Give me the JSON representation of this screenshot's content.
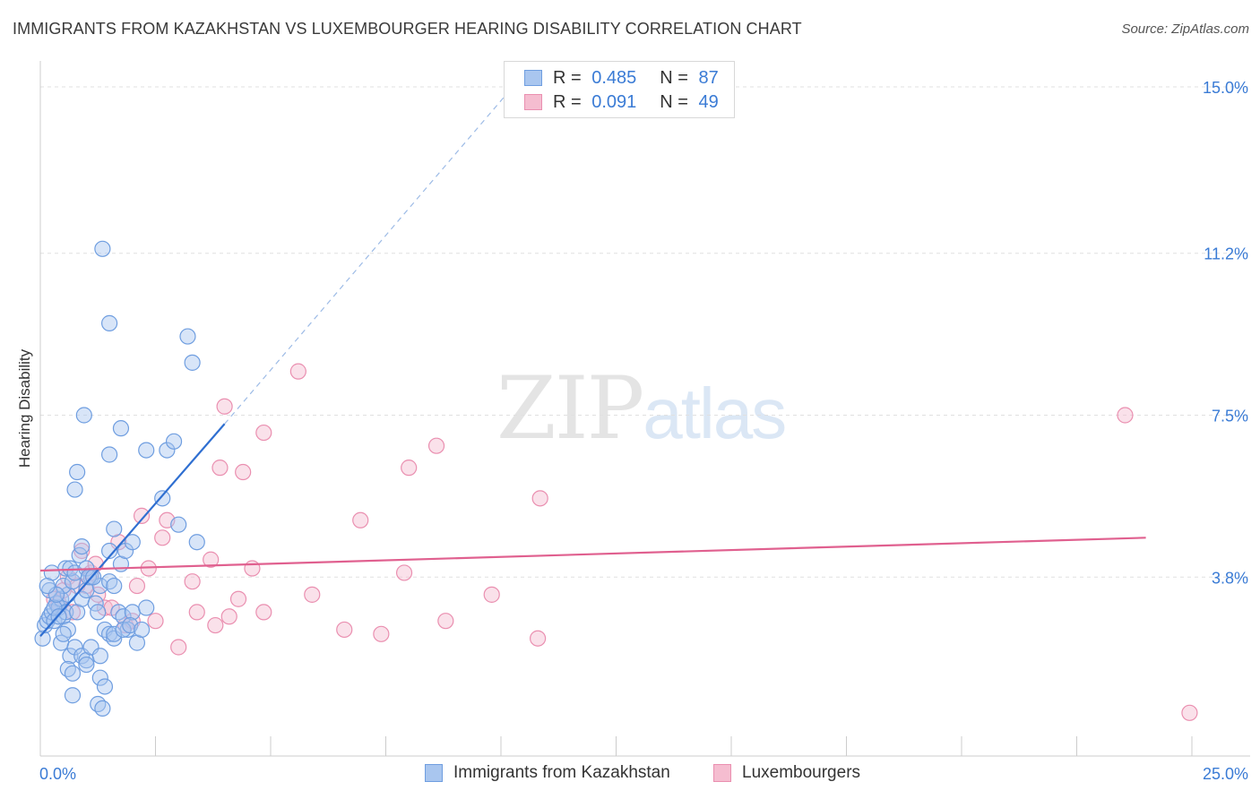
{
  "title": "IMMIGRANTS FROM KAZAKHSTAN VS LUXEMBOURGER HEARING DISABILITY CORRELATION CHART",
  "source": "Source: ZipAtlas.com",
  "watermark": {
    "part1": "ZIP",
    "part2": "atlas"
  },
  "colors": {
    "blue_fill": "#a9c6ef",
    "blue_stroke": "#6f9ee0",
    "blue_line": "#2f6fd1",
    "pink_fill": "#f5bdd0",
    "pink_stroke": "#ea8fb0",
    "pink_line": "#e0608f",
    "value_text": "#3a7bd5",
    "grid": "#e0e0e0"
  },
  "legend_top": [
    {
      "r_label": "R = ",
      "r_value": "0.485",
      "n_label": "N = ",
      "n_value": "87"
    },
    {
      "r_label": "R = ",
      "r_value": "0.091",
      "n_label": "N = ",
      "n_value": "49"
    }
  ],
  "chart_data": {
    "type": "scatter",
    "title": "IMMIGRANTS FROM KAZAKHSTAN VS LUXEMBOURGER HEARING DISABILITY CORRELATION CHART",
    "xlabel": "",
    "ylabel": "Hearing Disability",
    "xlim": [
      0,
      25
    ],
    "ylim": [
      0,
      15.5
    ],
    "x_tick_labels": [
      "0.0%",
      "25.0%"
    ],
    "y_ticks": [
      3.8,
      7.5,
      11.2,
      15.0
    ],
    "y_tick_labels": [
      "3.8%",
      "7.5%",
      "11.2%",
      "15.0%"
    ],
    "series": [
      {
        "name": "Immigrants from Kazakhstan",
        "R": 0.485,
        "N": 87,
        "trend": {
          "x": [
            0,
            4.0
          ],
          "y": [
            2.45,
            7.3
          ],
          "extend_x": [
            4.0,
            10.5
          ],
          "extend_y": [
            7.3,
            15.3
          ]
        },
        "points": [
          [
            0.05,
            2.4
          ],
          [
            0.1,
            2.7
          ],
          [
            0.15,
            2.8
          ],
          [
            0.2,
            2.9
          ],
          [
            0.25,
            3.0
          ],
          [
            0.3,
            2.8
          ],
          [
            0.35,
            3.2
          ],
          [
            0.4,
            3.1
          ],
          [
            0.45,
            3.3
          ],
          [
            0.5,
            2.9
          ],
          [
            0.55,
            3.0
          ],
          [
            0.6,
            3.4
          ],
          [
            0.2,
            3.5
          ],
          [
            0.3,
            3.1
          ],
          [
            0.4,
            2.9
          ],
          [
            0.5,
            3.6
          ],
          [
            0.6,
            2.6
          ],
          [
            0.7,
            3.7
          ],
          [
            0.8,
            3.0
          ],
          [
            0.9,
            3.3
          ],
          [
            1.0,
            3.5
          ],
          [
            1.1,
            3.8
          ],
          [
            1.2,
            3.2
          ],
          [
            1.3,
            3.6
          ],
          [
            0.55,
            4.0
          ],
          [
            0.65,
            4.0
          ],
          [
            0.75,
            3.9
          ],
          [
            0.85,
            4.3
          ],
          [
            1.0,
            4.0
          ],
          [
            1.05,
            3.8
          ],
          [
            1.15,
            3.8
          ],
          [
            1.25,
            3.0
          ],
          [
            1.4,
            2.6
          ],
          [
            1.5,
            2.5
          ],
          [
            1.6,
            2.4
          ],
          [
            1.7,
            3.0
          ],
          [
            1.8,
            2.9
          ],
          [
            1.9,
            2.6
          ],
          [
            2.0,
            3.0
          ],
          [
            2.1,
            2.3
          ],
          [
            0.45,
            2.3
          ],
          [
            0.5,
            2.5
          ],
          [
            0.65,
            2.0
          ],
          [
            0.75,
            2.2
          ],
          [
            0.9,
            2.0
          ],
          [
            1.0,
            1.9
          ],
          [
            1.1,
            2.2
          ],
          [
            1.3,
            2.0
          ],
          [
            0.6,
            1.7
          ],
          [
            0.7,
            1.6
          ],
          [
            1.0,
            1.8
          ],
          [
            1.3,
            1.5
          ],
          [
            1.4,
            1.3
          ],
          [
            0.7,
            1.1
          ],
          [
            1.25,
            0.9
          ],
          [
            1.35,
            0.8
          ],
          [
            1.6,
            2.5
          ],
          [
            1.8,
            2.6
          ],
          [
            1.95,
            2.7
          ],
          [
            2.2,
            2.6
          ],
          [
            2.3,
            3.1
          ],
          [
            1.5,
            3.7
          ],
          [
            1.6,
            3.6
          ],
          [
            1.75,
            4.1
          ],
          [
            1.85,
            4.4
          ],
          [
            2.0,
            4.6
          ],
          [
            1.5,
            4.4
          ],
          [
            1.6,
            4.9
          ],
          [
            3.4,
            4.6
          ],
          [
            2.65,
            5.6
          ],
          [
            3.0,
            5.0
          ],
          [
            0.75,
            5.8
          ],
          [
            0.8,
            6.2
          ],
          [
            1.5,
            6.6
          ],
          [
            2.3,
            6.7
          ],
          [
            2.75,
            6.7
          ],
          [
            2.9,
            6.9
          ],
          [
            1.75,
            7.2
          ],
          [
            0.95,
            7.5
          ],
          [
            3.3,
            8.7
          ],
          [
            3.2,
            9.3
          ],
          [
            1.5,
            9.6
          ],
          [
            1.35,
            11.3
          ],
          [
            0.25,
            3.9
          ],
          [
            0.35,
            3.4
          ],
          [
            0.15,
            3.6
          ],
          [
            0.9,
            4.5
          ]
        ]
      },
      {
        "name": "Luxembourgers",
        "R": 0.091,
        "N": 49,
        "trend": {
          "x": [
            0,
            24.0
          ],
          "y": [
            3.95,
            4.7
          ]
        },
        "points": [
          [
            0.3,
            3.3
          ],
          [
            0.5,
            3.5
          ],
          [
            0.6,
            3.8
          ],
          [
            0.8,
            3.6
          ],
          [
            0.9,
            4.4
          ],
          [
            1.1,
            3.9
          ],
          [
            1.2,
            4.1
          ],
          [
            1.4,
            3.1
          ],
          [
            1.55,
            3.1
          ],
          [
            1.7,
            4.6
          ],
          [
            1.85,
            2.7
          ],
          [
            2.0,
            2.8
          ],
          [
            2.1,
            3.6
          ],
          [
            2.2,
            5.2
          ],
          [
            2.35,
            4.0
          ],
          [
            2.5,
            2.8
          ],
          [
            2.65,
            4.7
          ],
          [
            2.75,
            5.1
          ],
          [
            3.0,
            2.2
          ],
          [
            3.3,
            3.7
          ],
          [
            3.4,
            3.0
          ],
          [
            3.7,
            4.2
          ],
          [
            3.8,
            2.7
          ],
          [
            4.1,
            2.9
          ],
          [
            4.3,
            3.3
          ],
          [
            4.6,
            4.0
          ],
          [
            4.85,
            3.0
          ],
          [
            3.9,
            6.3
          ],
          [
            4.4,
            6.2
          ],
          [
            4.0,
            7.7
          ],
          [
            4.85,
            7.1
          ],
          [
            5.6,
            8.5
          ],
          [
            5.9,
            3.4
          ],
          [
            6.6,
            2.6
          ],
          [
            6.95,
            5.1
          ],
          [
            7.4,
            2.5
          ],
          [
            7.9,
            3.9
          ],
          [
            8.0,
            6.3
          ],
          [
            8.6,
            6.8
          ],
          [
            8.8,
            2.8
          ],
          [
            9.8,
            3.4
          ],
          [
            10.8,
            2.4
          ],
          [
            10.85,
            5.6
          ],
          [
            23.55,
            7.5
          ],
          [
            24.95,
            0.7
          ],
          [
            1.25,
            3.4
          ],
          [
            0.4,
            3.2
          ],
          [
            0.7,
            3.0
          ],
          [
            1.0,
            3.6
          ]
        ]
      }
    ]
  },
  "bottom_legend": [
    "Immigrants from Kazakhstan",
    "Luxembourgers"
  ]
}
